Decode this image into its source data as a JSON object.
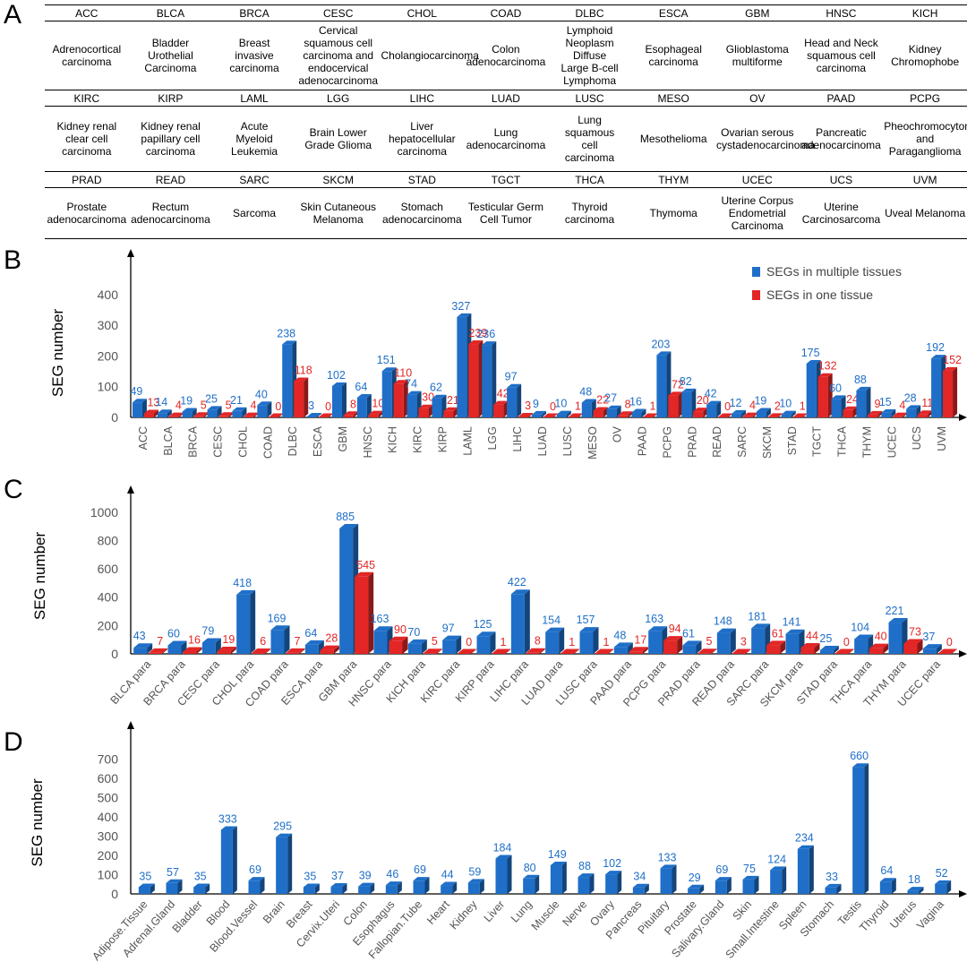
{
  "panel_labels": {
    "a": "A",
    "b": "B",
    "c": "C",
    "d": "D"
  },
  "colors": {
    "blue": "#1f6fc8",
    "red": "#e32626",
    "axis": "#000000",
    "tick": "#555555"
  },
  "table_a": {
    "rows": [
      {
        "abbr": [
          "ACC",
          "BLCA",
          "BRCA",
          "CESC",
          "CHOL",
          "COAD",
          "DLBC",
          "ESCA",
          "GBM",
          "HNSC",
          "KICH"
        ],
        "full": [
          "Adrenocortical\ncarcinoma",
          "Bladder\nUrothelial\nCarcinoma",
          "Breast\ninvasive\ncarcinoma",
          "Cervical\nsquamous cell\ncarcinoma and\nendocervical\nadenocarcinoma",
          "Cholangiocarcinoma",
          "Colon\nadenocarcinoma",
          "Lymphoid\nNeoplasm\nDiffuse\nLarge B-cell\nLymphoma",
          "Esophageal\ncarcinoma",
          "Glioblastoma\nmultiforme",
          "Head and Neck\nsquamous cell\ncarcinoma",
          "Kidney Chromophobe"
        ]
      },
      {
        "abbr": [
          "KIRC",
          "KIRP",
          "LAML",
          "LGG",
          "LIHC",
          "LUAD",
          "LUSC",
          "MESO",
          "OV",
          "PAAD",
          "PCPG"
        ],
        "full": [
          "Kidney renal\nclear cell\ncarcinoma",
          "Kidney renal\npapillary cell\ncarcinoma",
          "Acute\nMyeloid\nLeukemia",
          "Brain Lower\nGrade Glioma",
          "Liver hepatocellular\ncarcinoma",
          "Lung\nadenocarcinoma",
          "Lung\nsquamous\ncell\ncarcinoma",
          "Mesothelioma",
          "Ovarian serous\ncystadenocarcinoma",
          "Pancreatic\nadenocarcinoma",
          "Pheochromocytoma\nand Paraganglioma"
        ]
      },
      {
        "abbr": [
          "PRAD",
          "READ",
          "SARC",
          "SKCM",
          "STAD",
          "TGCT",
          "THCA",
          "THYM",
          "UCEC",
          "UCS",
          "UVM"
        ],
        "full": [
          "Prostate\nadenocarcinoma",
          "Rectum\nadenocarcinoma",
          "Sarcoma",
          "Skin Cutaneous\nMelanoma",
          "Stomach\nadenocarcinoma",
          "Testicular Germ\nCell Tumor",
          "Thyroid\ncarcinoma",
          "Thymoma",
          "Uterine Corpus\nEndometrial\nCarcinoma",
          "Uterine\nCarcinosarcoma",
          "Uveal Melanoma"
        ]
      }
    ]
  },
  "chart_data": [
    {
      "id": "B",
      "type": "bar",
      "ylabel": "SEG number",
      "ylim": [
        0,
        420
      ],
      "yticks": [
        0,
        100,
        200,
        300,
        400
      ],
      "legend": [
        "SEGs in multiple tissues",
        "SEGs in one tissue"
      ],
      "legend_position": "top-right",
      "categories": [
        "ACC",
        "BLCA",
        "BRCA",
        "CESC",
        "CHOL",
        "COAD",
        "DLBC",
        "ESCA",
        "GBM",
        "HNSC",
        "KICH",
        "KIRC",
        "KIRP",
        "LAML",
        "LGG",
        "LIHC",
        "LUAD",
        "LUSC",
        "MESO",
        "OV",
        "PAAD",
        "PCPG",
        "PRAD",
        "READ",
        "SARC",
        "SKCM",
        "STAD",
        "TGCT",
        "THCA",
        "THYM",
        "UCEC",
        "UCS",
        "UVM"
      ],
      "series": [
        {
          "name": "SEGs in multiple tissues",
          "values": [
            49,
            14,
            19,
            25,
            21,
            40,
            238,
            3,
            102,
            64,
            151,
            74,
            62,
            327,
            236,
            97,
            9,
            10,
            48,
            27,
            16,
            203,
            82,
            42,
            12,
            19,
            10,
            175,
            60,
            88,
            15,
            28,
            192
          ]
        },
        {
          "name": "SEGs in one tissue",
          "values": [
            13,
            4,
            5,
            5,
            4,
            0,
            118,
            0,
            8,
            10,
            110,
            30,
            21,
            239,
            42,
            3,
            0,
            1,
            22,
            8,
            1,
            72,
            20,
            0,
            4,
            2,
            1,
            132,
            24,
            9,
            4,
            11,
            152
          ]
        }
      ]
    },
    {
      "id": "C",
      "type": "bar",
      "ylabel": "SEG number",
      "ylim": [
        0,
        1100
      ],
      "yticks": [
        0,
        200,
        400,
        600,
        800,
        1000
      ],
      "categories": [
        "BLCA para",
        "BRCA para",
        "CESC para",
        "CHOL para",
        "COAD para",
        "ESCA para",
        "GBM para",
        "HNSC para",
        "KICH para",
        "KIRC para",
        "KIRP para",
        "LIHC para",
        "LUAD para",
        "LUSC para",
        "PAAD para",
        "PCPG para",
        "PRAD para",
        "READ para",
        "SARC para",
        "SKCM para",
        "STAD para",
        "THCA para",
        "THYM para",
        "UCEC para"
      ],
      "series": [
        {
          "name": "SEGs in multiple tissues",
          "values": [
            43,
            60,
            79,
            418,
            169,
            64,
            885,
            163,
            70,
            97,
            125,
            422,
            154,
            157,
            48,
            163,
            61,
            148,
            181,
            141,
            25,
            104,
            221,
            37
          ]
        },
        {
          "name": "SEGs in one tissue",
          "values": [
            7,
            16,
            19,
            6,
            7,
            28,
            545,
            90,
            5,
            0,
            1,
            8,
            1,
            1,
            17,
            94,
            5,
            3,
            61,
            44,
            0,
            40,
            73,
            0
          ]
        }
      ]
    },
    {
      "id": "D",
      "type": "bar",
      "ylabel": "SEG number",
      "ylim": [
        0,
        740
      ],
      "yticks": [
        0,
        100,
        200,
        300,
        400,
        500,
        600,
        700
      ],
      "categories": [
        "Adipose.Tissue",
        "Adrenal.Gland",
        "Bladder",
        "Blood",
        "Blood.Vessel",
        "Brain",
        "Breast",
        "Cervix.Uteri",
        "Colon",
        "Esophagus",
        "Fallopian.Tube",
        "Heart",
        "Kidney",
        "Liver",
        "Lung",
        "Muscle",
        "Nerve",
        "Ovary",
        "Pancreas",
        "Pituitary",
        "Prostate",
        "Salivary.Gland",
        "Skin",
        "Small.Intestine",
        "Spleen",
        "Stomach",
        "Testis",
        "Thyroid",
        "Uterus",
        "Vagina"
      ],
      "series": [
        {
          "name": "SEG number",
          "values": [
            35,
            57,
            35,
            333,
            69,
            295,
            35,
            37,
            39,
            46,
            69,
            44,
            59,
            184,
            80,
            149,
            88,
            102,
            34,
            133,
            29,
            69,
            75,
            124,
            234,
            33,
            660,
            64,
            18,
            52
          ]
        }
      ]
    }
  ]
}
